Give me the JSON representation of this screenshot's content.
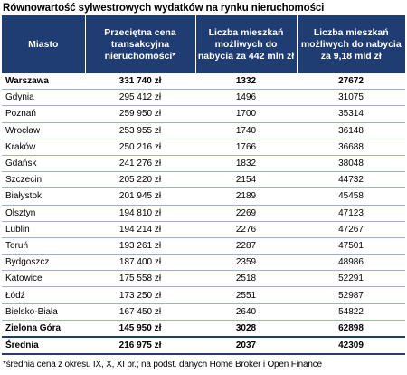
{
  "title": "Równowartość sylwestrowych wydatków na rynku nieruchomości",
  "footnote": "*średnia cena z okresu IX, X, XI br.; na podst. danych Home Broker i Open Finance",
  "chart_data": {
    "type": "table",
    "columns": [
      "Miasto",
      "Przeciętna cena transakcyjna nieruchomości*",
      "Liczba mieszkań możliwych do nabycia za 442 mln zł",
      "Liczba mieszkań możliwych do nabycia za 9,18 mld zł"
    ],
    "rows": [
      {
        "city": "Warszawa",
        "price": "331 740 zł",
        "n442m": "1332",
        "n918b": "27672",
        "bold": true
      },
      {
        "city": "Gdynia",
        "price": "295 412 zł",
        "n442m": "1496",
        "n918b": "31075",
        "bold": false
      },
      {
        "city": "Poznań",
        "price": "259 950 zł",
        "n442m": "1700",
        "n918b": "35314",
        "bold": false
      },
      {
        "city": "Wrocław",
        "price": "253 955 zł",
        "n442m": "1740",
        "n918b": "36148",
        "bold": false
      },
      {
        "city": "Kraków",
        "price": "250 216 zł",
        "n442m": "1766",
        "n918b": "36688",
        "bold": false
      },
      {
        "city": "Gdańsk",
        "price": "241 276 zł",
        "n442m": "1832",
        "n918b": "38048",
        "bold": false
      },
      {
        "city": "Szczecin",
        "price": "205 220 zł",
        "n442m": "2154",
        "n918b": "44732",
        "bold": false
      },
      {
        "city": "Białystok",
        "price": "201 945 zł",
        "n442m": "2189",
        "n918b": "45458",
        "bold": false
      },
      {
        "city": "Olsztyn",
        "price": "194 810 zł",
        "n442m": "2269",
        "n918b": "47123",
        "bold": false
      },
      {
        "city": "Lublin",
        "price": "194 214 zł",
        "n442m": "2276",
        "n918b": "47267",
        "bold": false
      },
      {
        "city": "Toruń",
        "price": "193 261 zł",
        "n442m": "2287",
        "n918b": "47501",
        "bold": false
      },
      {
        "city": "Bydgoszcz",
        "price": "187 400 zł",
        "n442m": "2359",
        "n918b": "48986",
        "bold": false
      },
      {
        "city": "Katowice",
        "price": "175 558 zł",
        "n442m": "2518",
        "n918b": "52291",
        "bold": false
      },
      {
        "city": "Łódź",
        "price": "173 250 zł",
        "n442m": "2551",
        "n918b": "52987",
        "bold": false
      },
      {
        "city": "Bielsko-Biała",
        "price": "167 450 zł",
        "n442m": "2640",
        "n918b": "54822",
        "bold": false
      },
      {
        "city": "Zielona Góra",
        "price": "145 950 zł",
        "n442m": "3028",
        "n918b": "62898",
        "bold": true
      },
      {
        "city": "Średnia",
        "price": "216 975 zł",
        "n442m": "2037",
        "n918b": "42309",
        "bold": true
      }
    ]
  }
}
